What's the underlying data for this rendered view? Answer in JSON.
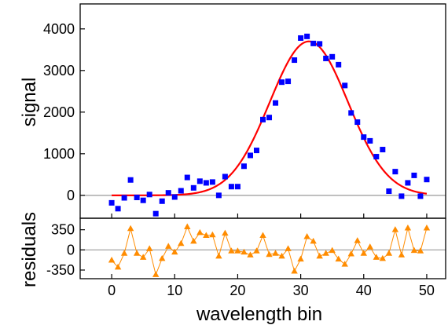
{
  "chart_data": [
    {
      "type": "scatter",
      "panel": "signal",
      "xlabel": "wavelength  bin",
      "ylabel": "signal",
      "xlim": [
        -5,
        53
      ],
      "ylim": [
        -550,
        4600
      ],
      "xticks": [
        0,
        10,
        20,
        30,
        40,
        50
      ],
      "yticks": [
        0,
        1000,
        2000,
        3000,
        4000
      ],
      "grid": false,
      "reference_line_y": 0,
      "colors": {
        "points": "#0000ff",
        "fit": "#ff0000",
        "zero_line": "#9a9a9a"
      },
      "series": [
        {
          "kind": "points",
          "marker": "square",
          "x": [
            0,
            1,
            2,
            3,
            4,
            5,
            6,
            7,
            8,
            9,
            10,
            11,
            12,
            13,
            14,
            15,
            16,
            17,
            18,
            19,
            20,
            21,
            22,
            23,
            24,
            25,
            26,
            27,
            28,
            29,
            30,
            31,
            32,
            33,
            34,
            35,
            36,
            37,
            38,
            39,
            40,
            41,
            42,
            43,
            44,
            45,
            46,
            47,
            48,
            49,
            50
          ],
          "y": [
            -180,
            -320,
            -60,
            370,
            -50,
            -120,
            20,
            -440,
            -140,
            60,
            -40,
            110,
            430,
            180,
            340,
            300,
            320,
            0,
            450,
            210,
            210,
            700,
            960,
            1080,
            1820,
            1870,
            2220,
            2720,
            2740,
            3250,
            3780,
            3820,
            3650,
            3640,
            3290,
            3330,
            3140,
            2640,
            1980,
            1760,
            1400,
            1310,
            930,
            1100,
            100,
            570,
            -20,
            300,
            480,
            -20,
            380
          ]
        },
        {
          "kind": "fit",
          "model": "gaussian",
          "amplitude": 3700,
          "center": 31.3,
          "sigma": 6.2,
          "x_range": [
            0,
            50
          ]
        }
      ]
    },
    {
      "type": "line",
      "panel": "residuals",
      "xlabel": "wavelength  bin",
      "ylabel": "residuals",
      "xlim": [
        -5,
        53
      ],
      "ylim": [
        -500,
        550
      ],
      "xticks": [
        0,
        10,
        20,
        30,
        40,
        50
      ],
      "yticks": [
        350,
        0,
        -350
      ],
      "ytick_labels": [
        "350",
        "0",
        "-350"
      ],
      "grid": false,
      "reference_line_y": 0,
      "colors": {
        "points": "#ff8c00",
        "line": "#ff8c00",
        "zero_line": "#9a9a9a"
      },
      "series": [
        {
          "marker": "triangle",
          "x": [
            0,
            1,
            2,
            3,
            4,
            5,
            6,
            7,
            8,
            9,
            10,
            11,
            12,
            13,
            14,
            15,
            16,
            17,
            18,
            19,
            20,
            21,
            22,
            23,
            24,
            25,
            26,
            27,
            28,
            29,
            30,
            31,
            32,
            33,
            34,
            35,
            36,
            37,
            38,
            39,
            40,
            41,
            42,
            43,
            44,
            45,
            46,
            47,
            48,
            49,
            50
          ],
          "y": [
            -180,
            -300,
            -60,
            370,
            -60,
            -130,
            20,
            -430,
            -150,
            60,
            -40,
            110,
            400,
            150,
            300,
            250,
            260,
            -110,
            290,
            -20,
            -20,
            -40,
            -90,
            -20,
            250,
            -80,
            -60,
            -110,
            20,
            -370,
            -160,
            230,
            150,
            -110,
            -60,
            -10,
            -160,
            -250,
            -70,
            160,
            -60,
            50,
            -130,
            -150,
            -60,
            350,
            -90,
            380,
            -10,
            -20,
            380
          ]
        }
      ]
    }
  ]
}
